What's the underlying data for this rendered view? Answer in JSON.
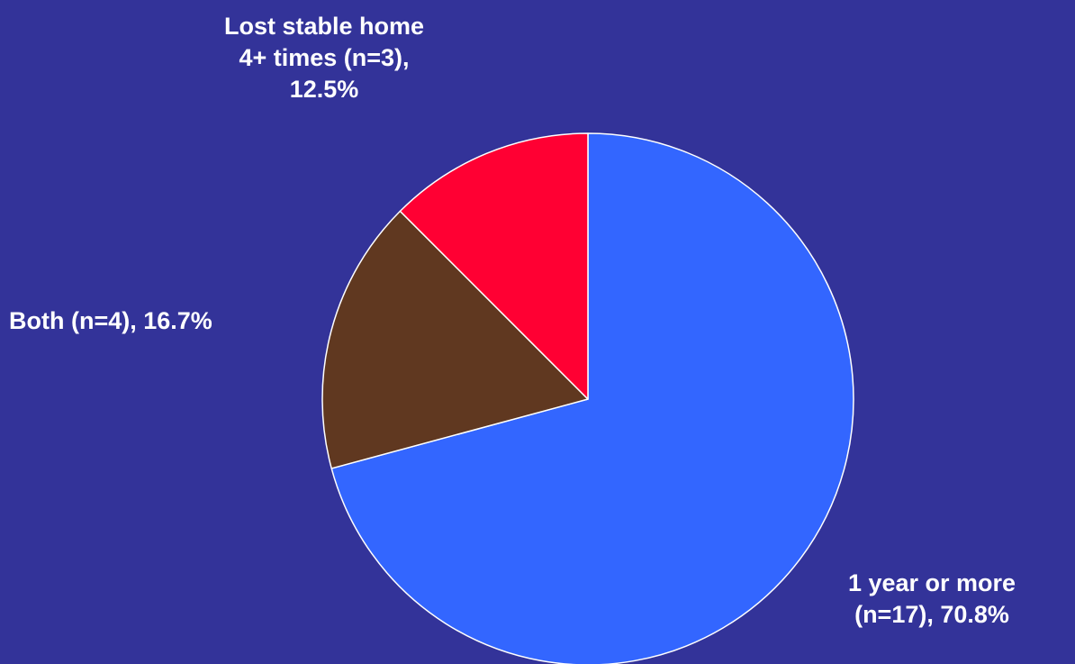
{
  "chart_data": {
    "type": "pie",
    "title": "",
    "slices": [
      {
        "category": "1 year or more",
        "n": 17,
        "percent": 70.8,
        "label_lines": [
          "1 year or more",
          "(n=17), 70.8%"
        ],
        "color": "#3366FF"
      },
      {
        "category": "Both",
        "n": 4,
        "percent": 16.7,
        "label_lines": [
          "Both (n=4), 16.7%"
        ],
        "color": "#603820"
      },
      {
        "category": "Lost stable home 4+ times",
        "n": 3,
        "percent": 12.5,
        "label_lines": [
          "Lost stable home",
          "4+ times (n=3),",
          "12.5%"
        ],
        "color": "#FF0033"
      }
    ],
    "start_angle_deg": 0,
    "direction": "clockwise",
    "legend": "none",
    "background_color": "#333399",
    "label_color": "#FFFFFF",
    "slice_border_color": "#FFFFFF"
  }
}
